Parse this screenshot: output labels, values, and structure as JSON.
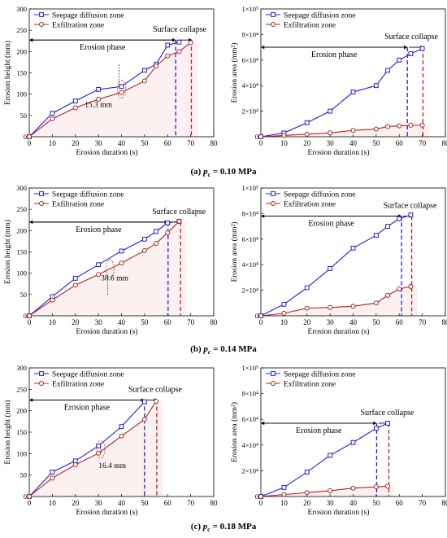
{
  "chart_data": [
    {
      "type": "line",
      "panel": "a-height",
      "xlabel": "Erosion duration (s)",
      "ylabel": "Erosion height (mm)",
      "xlim": [
        0,
        80
      ],
      "ylim": [
        0,
        300
      ],
      "xticks": [
        "0",
        "10",
        "20",
        "30",
        "40",
        "50",
        "60",
        "70",
        "80"
      ],
      "yticks": [
        "0",
        "50",
        "100",
        "150",
        "200",
        "250",
        "300"
      ],
      "legend_position": "top-left",
      "series": [
        {
          "name": "Seepage diffusion zone",
          "color": "#1f1fd6",
          "marker": "square",
          "x": [
            0,
            10,
            20,
            30,
            40,
            50,
            55,
            60,
            65
          ],
          "y": [
            0,
            55,
            84,
            111,
            118,
            156,
            170,
            215,
            222
          ]
        },
        {
          "name": "Exfiltration zone",
          "color": "#b22222",
          "marker": "circle",
          "x": [
            0,
            10,
            20,
            30,
            40,
            50,
            55,
            60,
            65,
            70
          ],
          "y": [
            0,
            42,
            68,
            88,
            104,
            131,
            166,
            190,
            200,
            221
          ]
        }
      ],
      "annotations": {
        "phase": "Erosion phase",
        "collapse": "Surface collapse",
        "gap": "15.3 mm"
      }
    },
    {
      "type": "line",
      "panel": "a-area",
      "xlabel": "Erosion duration (s)",
      "ylabel": "Erosion area (mm²)",
      "xlim": [
        0,
        80
      ],
      "ylim": [
        0,
        100000
      ],
      "xticks": [
        "0",
        "10",
        "20",
        "30",
        "40",
        "50",
        "60",
        "70",
        "80"
      ],
      "yticks": [
        "0",
        "2×10⁴",
        "4×10⁴",
        "6×10⁴",
        "8×10⁴",
        "1×10⁵"
      ],
      "legend_position": "top-left",
      "series": [
        {
          "name": "Seepage diffusion zone",
          "color": "#1f1fd6",
          "marker": "square",
          "x": [
            0,
            10,
            20,
            30,
            40,
            50,
            55,
            60,
            65,
            70
          ],
          "y": [
            0,
            3000,
            11000,
            20000,
            35000,
            40000,
            52000,
            60000,
            65000,
            69000
          ]
        },
        {
          "name": "Exfiltration zone",
          "color": "#b22222",
          "marker": "circle",
          "x": [
            0,
            10,
            20,
            30,
            40,
            50,
            55,
            60,
            65,
            70
          ],
          "y": [
            0,
            1000,
            2000,
            3000,
            5000,
            6000,
            8000,
            8500,
            9000,
            9000
          ]
        }
      ],
      "annotations": {
        "phase": "Erosion phase",
        "collapse": "Surface collapse"
      }
    },
    {
      "type": "line",
      "panel": "b-height",
      "xlabel": "Erosion duration (s)",
      "ylabel": "Erosion height (mm)",
      "xlim": [
        0,
        80
      ],
      "ylim": [
        0,
        300
      ],
      "xticks": [
        "0",
        "10",
        "20",
        "30",
        "40",
        "50",
        "60",
        "70",
        "80"
      ],
      "yticks": [
        "0",
        "50",
        "100",
        "150",
        "200",
        "250",
        "300"
      ],
      "legend_position": "top-left",
      "series": [
        {
          "name": "Seepage diffusion zone",
          "color": "#1f1fd6",
          "marker": "square",
          "x": [
            0,
            10,
            20,
            30,
            40,
            50,
            55,
            60,
            65
          ],
          "y": [
            0,
            45,
            88,
            120,
            152,
            180,
            198,
            218,
            222
          ]
        },
        {
          "name": "Exfiltration zone",
          "color": "#b22222",
          "marker": "circle",
          "x": [
            0,
            10,
            20,
            30,
            40,
            50,
            55,
            60,
            65
          ],
          "y": [
            0,
            37,
            72,
            97,
            124,
            153,
            170,
            195,
            222
          ]
        }
      ],
      "annotations": {
        "phase": "Erosion phase",
        "collapse": "Surface collapse",
        "gap": "38.6 mm"
      }
    },
    {
      "type": "line",
      "panel": "b-area",
      "xlabel": "Erosion duration (s)",
      "ylabel": "Erosion area (mm²)",
      "xlim": [
        0,
        80
      ],
      "ylim": [
        0,
        100000
      ],
      "xticks": [
        "0",
        "10",
        "20",
        "30",
        "40",
        "50",
        "60",
        "70",
        "80"
      ],
      "yticks": [
        "0",
        "2×10⁴",
        "4×10⁴",
        "6×10⁴",
        "8×10⁴",
        "1×10⁵"
      ],
      "legend_position": "top-left",
      "series": [
        {
          "name": "Seepage diffusion zone",
          "color": "#1f1fd6",
          "marker": "square",
          "x": [
            0,
            10,
            20,
            30,
            40,
            50,
            55,
            60,
            65
          ],
          "y": [
            0,
            9000,
            22000,
            37000,
            53000,
            63000,
            70000,
            76000,
            79000
          ]
        },
        {
          "name": "Exfiltration zone",
          "color": "#b22222",
          "marker": "circle",
          "x": [
            0,
            10,
            20,
            30,
            40,
            50,
            55,
            60,
            65
          ],
          "y": [
            0,
            2000,
            6000,
            6500,
            7500,
            10000,
            16000,
            21000,
            23000
          ]
        }
      ],
      "annotations": {
        "phase": "Erosion phase",
        "collapse": "Surface collapse"
      }
    },
    {
      "type": "line",
      "panel": "c-height",
      "xlabel": "Erosion duration (s)",
      "ylabel": "Erosion height (mm)",
      "xlim": [
        0,
        80
      ],
      "ylim": [
        0,
        300
      ],
      "xticks": [
        "0",
        "10",
        "20",
        "30",
        "40",
        "50",
        "60",
        "70",
        "80"
      ],
      "yticks": [
        "0",
        "50",
        "100",
        "150",
        "200",
        "250",
        "300"
      ],
      "legend_position": "top-left",
      "series": [
        {
          "name": "Seepage diffusion zone",
          "color": "#1f1fd6",
          "marker": "square",
          "x": [
            0,
            10,
            20,
            30,
            40,
            50
          ],
          "y": [
            0,
            57,
            83,
            118,
            163,
            221
          ]
        },
        {
          "name": "Exfiltration zone",
          "color": "#b22222",
          "marker": "circle",
          "x": [
            0,
            10,
            20,
            30,
            40,
            50,
            55
          ],
          "y": [
            0,
            43,
            74,
            101,
            141,
            180,
            222
          ]
        }
      ],
      "annotations": {
        "phase": "Erosion phase",
        "collapse": "Surface collapse",
        "gap": "16.4 mm"
      }
    },
    {
      "type": "line",
      "panel": "c-area",
      "xlabel": "Erosion duration (s)",
      "ylabel": "Erosion area (mm²)",
      "xlim": [
        0,
        80
      ],
      "ylim": [
        0,
        100000
      ],
      "xticks": [
        "0",
        "10",
        "20",
        "30",
        "40",
        "50",
        "60",
        "70",
        "80"
      ],
      "yticks": [
        "0",
        "2×10⁴",
        "4×10⁴",
        "6×10⁴",
        "8×10⁴",
        "1×10⁵"
      ],
      "legend_position": "top-left",
      "series": [
        {
          "name": "Seepage diffusion zone",
          "color": "#1f1fd6",
          "marker": "square",
          "x": [
            0,
            10,
            20,
            30,
            40,
            50,
            55
          ],
          "y": [
            0,
            7000,
            19000,
            32000,
            42000,
            53000,
            57000
          ]
        },
        {
          "name": "Exfiltration zone",
          "color": "#b22222",
          "marker": "circle",
          "x": [
            0,
            10,
            20,
            30,
            40,
            50,
            55
          ],
          "y": [
            0,
            1500,
            3000,
            4500,
            6500,
            7500,
            8000
          ]
        }
      ],
      "annotations": {
        "phase": "Erosion phase",
        "collapse": "Surface collapse"
      }
    }
  ],
  "captions": [
    {
      "label": "(a) ",
      "var": "p",
      "sub": "c",
      "rest": " = 0.10 MPa"
    },
    {
      "label": "(b) ",
      "var": "p",
      "sub": "c",
      "rest": " = 0.14 MPa"
    },
    {
      "label": "(c) ",
      "var": "p",
      "sub": "c",
      "rest": " = 0.18 MPa"
    }
  ]
}
